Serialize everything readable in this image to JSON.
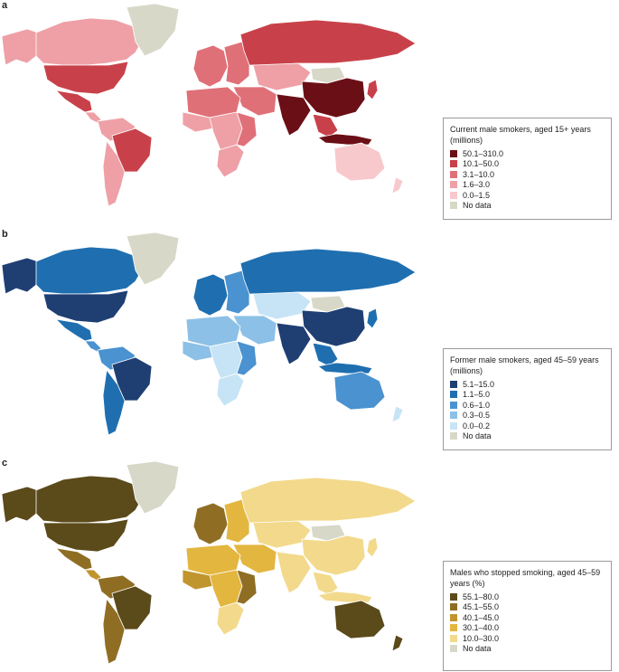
{
  "panels": [
    {
      "letter": "a",
      "legend": {
        "title": "Current male smokers, aged 15+ years (millions)",
        "items": [
          {
            "label": "50.1–310.0",
            "color": "#6b0f16"
          },
          {
            "label": "10.1–50.0",
            "color": "#c8414a"
          },
          {
            "label": "3.1–10.0",
            "color": "#e07078"
          },
          {
            "label": "1.6–3.0",
            "color": "#eea0a6"
          },
          {
            "label": "0.0–1.5",
            "color": "#f8c9cc"
          },
          {
            "label": "No data",
            "color": "#d8d8c8"
          }
        ]
      }
    },
    {
      "letter": "b",
      "legend": {
        "title": "Former male smokers, aged 45–59 years (millions)",
        "items": [
          {
            "label": "5.1–15.0",
            "color": "#1f3f73"
          },
          {
            "label": "1.1–5.0",
            "color": "#1f6fb0"
          },
          {
            "label": "0.6–1.0",
            "color": "#4a92d0"
          },
          {
            "label": "0.3–0.5",
            "color": "#8cc0e6"
          },
          {
            "label": "0.0–0.2",
            "color": "#c7e4f6"
          },
          {
            "label": "No data",
            "color": "#d8d8c8"
          }
        ]
      }
    },
    {
      "letter": "c",
      "legend": {
        "title": "Males who stopped smoking, aged 45–59 years (%)",
        "items": [
          {
            "label": "55.1–80.0",
            "color": "#5b4a1a"
          },
          {
            "label": "45.1–55.0",
            "color": "#8f6e24"
          },
          {
            "label": "40.1–45.0",
            "color": "#c0952e"
          },
          {
            "label": "30.1–40.0",
            "color": "#e3b640"
          },
          {
            "label": "10.0–30.0",
            "color": "#f3d98c"
          },
          {
            "label": "No data",
            "color": "#d8d8c8"
          }
        ]
      }
    }
  ],
  "map_regions": {
    "a": {
      "alaska": 3,
      "canada": 3,
      "greenland": 5,
      "usa": 1,
      "mexico": 1,
      "central_america": 3,
      "south_america_north": 3,
      "brazil": 1,
      "south_america_south": 3,
      "europe_west": 2,
      "europe_east": 2,
      "russia": 1,
      "central_asia": 3,
      "mongolia": 5,
      "china": 0,
      "india": 0,
      "southeast_asia": 1,
      "indonesia": 0,
      "middle_east": 2,
      "north_africa": 2,
      "west_africa": 3,
      "central_africa": 3,
      "east_africa": 2,
      "southern_africa": 3,
      "australia": 4,
      "new_zealand": 4,
      "japan": 1
    },
    "b": {
      "alaska": 0,
      "canada": 1,
      "greenland": 5,
      "usa": 0,
      "mexico": 1,
      "central_america": 2,
      "south_america_north": 2,
      "brazil": 0,
      "south_america_south": 1,
      "europe_west": 1,
      "europe_east": 2,
      "russia": 1,
      "central_asia": 4,
      "mongolia": 5,
      "china": 0,
      "india": 0,
      "southeast_asia": 1,
      "indonesia": 1,
      "middle_east": 3,
      "north_africa": 3,
      "west_africa": 3,
      "central_africa": 4,
      "east_africa": 2,
      "southern_africa": 4,
      "australia": 2,
      "new_zealand": 4,
      "japan": 1
    },
    "c": {
      "alaska": 0,
      "canada": 0,
      "greenland": 5,
      "usa": 0,
      "mexico": 1,
      "central_america": 2,
      "south_america_north": 1,
      "brazil": 0,
      "south_america_south": 1,
      "europe_west": 1,
      "europe_east": 3,
      "russia": 4,
      "central_asia": 4,
      "mongolia": 5,
      "china": 4,
      "india": 4,
      "southeast_asia": 4,
      "indonesia": 4,
      "middle_east": 3,
      "north_africa": 3,
      "west_africa": 2,
      "central_africa": 3,
      "east_africa": 1,
      "southern_africa": 4,
      "australia": 0,
      "new_zealand": 0,
      "japan": 4
    }
  }
}
